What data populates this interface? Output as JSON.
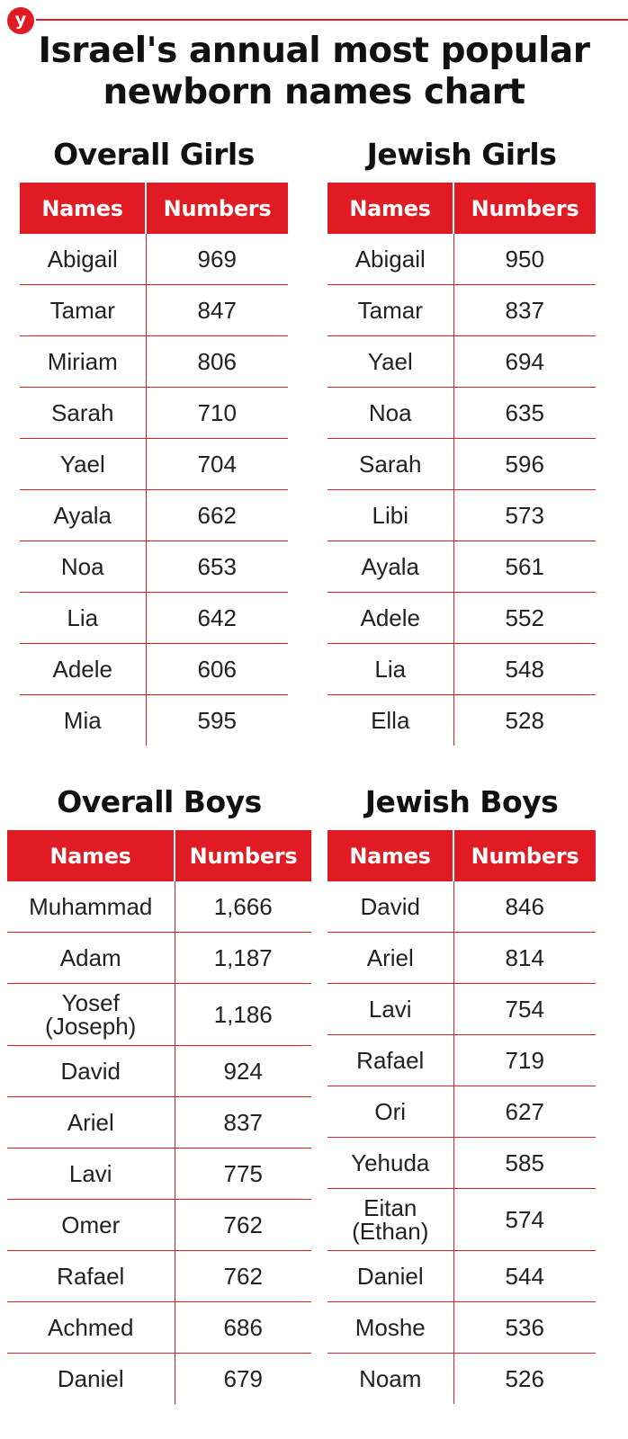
{
  "logo_text": "y",
  "title": {
    "line1": "Israel's annual most popular",
    "line2": "newborn names chart"
  },
  "sections": {
    "overall_girls": {
      "title": "Overall Girls",
      "col_names": "Names",
      "col_numbers": "Numbers",
      "rows": [
        {
          "name": "Abigail",
          "number": "969"
        },
        {
          "name": "Tamar",
          "number": "847"
        },
        {
          "name": "Miriam",
          "number": "806"
        },
        {
          "name": "Sarah",
          "number": "710"
        },
        {
          "name": "Yael",
          "number": "704"
        },
        {
          "name": "Ayala",
          "number": "662"
        },
        {
          "name": "Noa",
          "number": "653"
        },
        {
          "name": "Lia",
          "number": "642"
        },
        {
          "name": "Adele",
          "number": "606"
        },
        {
          "name": "Mia",
          "number": "595"
        }
      ]
    },
    "jewish_girls": {
      "title": "Jewish Girls",
      "col_names": "Names",
      "col_numbers": "Numbers",
      "rows": [
        {
          "name": "Abigail",
          "number": "950"
        },
        {
          "name": "Tamar",
          "number": "837"
        },
        {
          "name": "Yael",
          "number": "694"
        },
        {
          "name": "Noa",
          "number": "635"
        },
        {
          "name": "Sarah",
          "number": "596"
        },
        {
          "name": "Libi",
          "number": "573"
        },
        {
          "name": "Ayala",
          "number": "561"
        },
        {
          "name": "Adele",
          "number": "552"
        },
        {
          "name": "Lia",
          "number": "548"
        },
        {
          "name": "Ella",
          "number": "528"
        }
      ]
    },
    "overall_boys": {
      "title": "Overall Boys",
      "col_names": "Names",
      "col_numbers": "Numbers",
      "rows": [
        {
          "name": "Muhammad",
          "number": "1,666"
        },
        {
          "name": "Adam",
          "number": "1,187"
        },
        {
          "name": "Yosef",
          "name2": "(Joseph)",
          "number": "1,186"
        },
        {
          "name": "David",
          "number": "924"
        },
        {
          "name": "Ariel",
          "number": "837"
        },
        {
          "name": "Lavi",
          "number": "775"
        },
        {
          "name": "Omer",
          "number": "762"
        },
        {
          "name": "Rafael",
          "number": "762"
        },
        {
          "name": "Achmed",
          "number": "686"
        },
        {
          "name": "Daniel",
          "number": "679"
        }
      ]
    },
    "jewish_boys": {
      "title": "Jewish Boys",
      "col_names": "Names",
      "col_numbers": "Numbers",
      "rows": [
        {
          "name": "David",
          "number": "846"
        },
        {
          "name": "Ariel",
          "number": "814"
        },
        {
          "name": "Lavi",
          "number": "754"
        },
        {
          "name": "Rafael",
          "number": "719"
        },
        {
          "name": "Ori",
          "number": "627"
        },
        {
          "name": "Yehuda",
          "number": "585"
        },
        {
          "name": "Eitan",
          "name2": "(Ethan)",
          "number": "574"
        },
        {
          "name": "Daniel",
          "number": "544"
        },
        {
          "name": "Moshe",
          "number": "536"
        },
        {
          "name": "Noam",
          "number": "526"
        }
      ]
    }
  },
  "colors": {
    "accent_red": "#e01b24",
    "text": "#222222"
  }
}
